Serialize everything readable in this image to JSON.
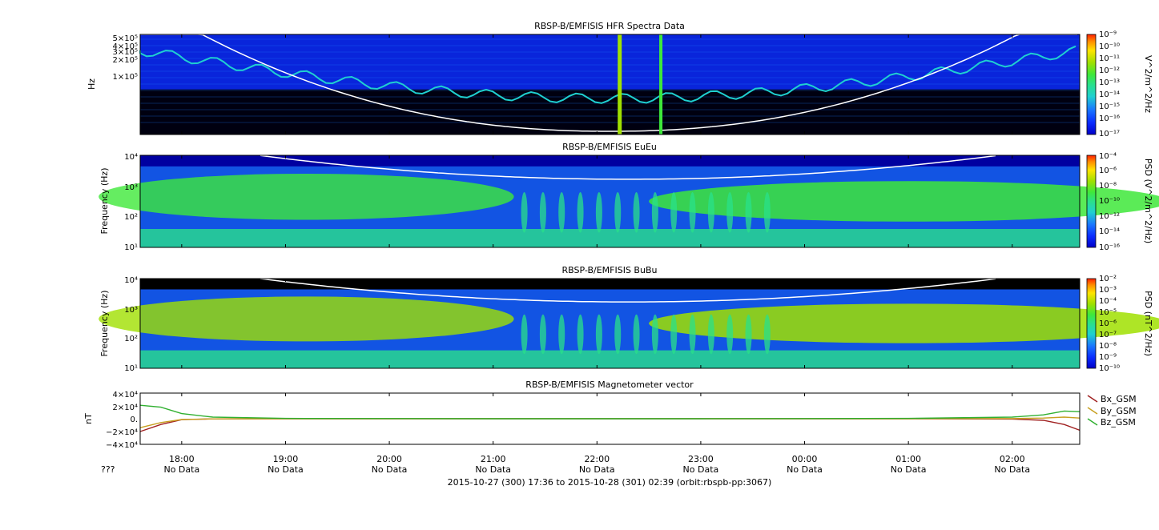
{
  "colors": {
    "spectrogram_cmap": [
      "#0000c8",
      "#0a2cff",
      "#1a78ff",
      "#1fd0d0",
      "#2ae08a",
      "#3ee83a",
      "#a0e000",
      "#ffe400",
      "#ff8c00",
      "#ff2000"
    ],
    "background": "#000000",
    "cutoff_line": "#ffffff",
    "Bx": "#a02020",
    "By": "#c8a020",
    "Bz": "#30b030"
  },
  "footer": {
    "unknown_label": "???",
    "no_data": "No Data",
    "time_range": "2015-10-27 (300) 17:36 to 2015-10-28 (301) 02:39 (orbit:rbspb-pp:3067)"
  },
  "chart_data": [
    {
      "type": "heatmap",
      "title": "RBSP-B/EMFISIS  HFR Spectra Data",
      "ylabel": "Hz",
      "ytick_labels": [
        "5×10⁵",
        "4×10⁵",
        "3×10⁵",
        "2×10⁵",
        "1×10⁵"
      ],
      "x_ticks": [
        "18:00",
        "19:00",
        "20:00",
        "21:00",
        "22:00",
        "23:00",
        "00:00",
        "01:00",
        "02:00"
      ],
      "colorbar_label": "V^2/m^2/Hz",
      "colorbar_ticks": [
        "10⁻⁹",
        "10⁻¹⁰",
        "10⁻¹¹",
        "10⁻¹²",
        "10⁻¹³",
        "10⁻¹⁴",
        "10⁻¹⁵",
        "10⁻¹⁶",
        "10⁻¹⁷"
      ]
    },
    {
      "type": "heatmap",
      "title": "RBSP-B/EMFISIS  EuEu",
      "ylabel": "Frequency (Hz)",
      "ytick_labels": [
        "10⁴",
        "10³",
        "10²",
        "10¹"
      ],
      "x_ticks": [
        "18:00",
        "19:00",
        "20:00",
        "21:00",
        "22:00",
        "23:00",
        "00:00",
        "01:00",
        "02:00"
      ],
      "colorbar_label": "PSD (V^2/m^2/Hz)",
      "colorbar_ticks": [
        "10⁻⁴",
        "10⁻⁶",
        "10⁻⁸",
        "10⁻¹⁰",
        "10⁻¹²",
        "10⁻¹⁴",
        "10⁻¹⁶"
      ]
    },
    {
      "type": "heatmap",
      "title": "RBSP-B/EMFISIS  BuBu",
      "ylabel": "Frequency (Hz)",
      "ytick_labels": [
        "10⁴",
        "10³",
        "10²",
        "10¹"
      ],
      "x_ticks": [
        "18:00",
        "19:00",
        "20:00",
        "21:00",
        "22:00",
        "23:00",
        "00:00",
        "01:00",
        "02:00"
      ],
      "colorbar_label": "PSD (nT^2/Hz)",
      "colorbar_ticks": [
        "10⁻²",
        "10⁻³",
        "10⁻⁴",
        "10⁻⁵",
        "10⁻⁶",
        "10⁻⁷",
        "10⁻⁸",
        "10⁻⁹",
        "10⁻¹⁰"
      ]
    },
    {
      "type": "line",
      "title": "RBSP-B/EMFISIS  Magnetometer vector",
      "ylabel": "nT",
      "ytick_labels": [
        "4×10⁴",
        "2×10⁴",
        "0.",
        "−2×10⁴",
        "−4×10⁴"
      ],
      "ylim": [
        -40000,
        40000
      ],
      "x_ticks": [
        "18:00",
        "19:00",
        "20:00",
        "21:00",
        "22:00",
        "23:00",
        "00:00",
        "01:00",
        "02:00"
      ],
      "x_hours": [
        17.6,
        17.8,
        18.0,
        18.3,
        19.0,
        21.0,
        23.0,
        25.0,
        26.0,
        26.3,
        26.5,
        26.65
      ],
      "series": [
        {
          "name": "Bx_GSM",
          "values": [
            -20000,
            -9000,
            -1500,
            -200,
            0,
            0,
            0,
            0,
            -500,
            -2500,
            -9000,
            -18000
          ]
        },
        {
          "name": "By_GSM",
          "values": [
            -14000,
            -6000,
            -1200,
            -200,
            0,
            0,
            0,
            0,
            200,
            1000,
            2500,
            1000
          ]
        },
        {
          "name": "Bz_GSM",
          "values": [
            21000,
            18000,
            8000,
            2500,
            500,
            0,
            0,
            500,
            2500,
            6000,
            12000,
            11000
          ]
        }
      ]
    }
  ]
}
